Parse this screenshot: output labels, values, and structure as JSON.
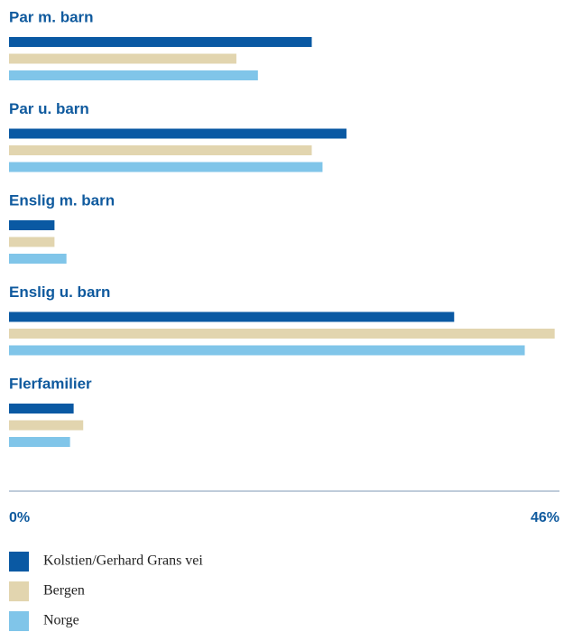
{
  "chart_data": {
    "type": "bar",
    "orientation": "horizontal",
    "categories": [
      "Par m. barn",
      "Par u. barn",
      "Enslig m. barn",
      "Enslig u. barn",
      "Flerfamilier"
    ],
    "series": [
      {
        "name": "Kolstien/Gerhard Grans vei",
        "color": "#0a59a3",
        "values": [
          25.3,
          28.2,
          3.8,
          37.2,
          5.4
        ]
      },
      {
        "name": "Bergen",
        "color": "#e2d5af",
        "values": [
          19.0,
          25.3,
          3.8,
          45.6,
          6.2
        ]
      },
      {
        "name": "Norge",
        "color": "#80c5e9",
        "values": [
          20.8,
          26.2,
          4.8,
          43.1,
          5.1
        ]
      }
    ],
    "xlim": [
      0,
      46
    ],
    "xticks": [
      {
        "value": 0,
        "label": "0%"
      },
      {
        "value": 46,
        "label": "46%"
      }
    ],
    "grid": false
  }
}
